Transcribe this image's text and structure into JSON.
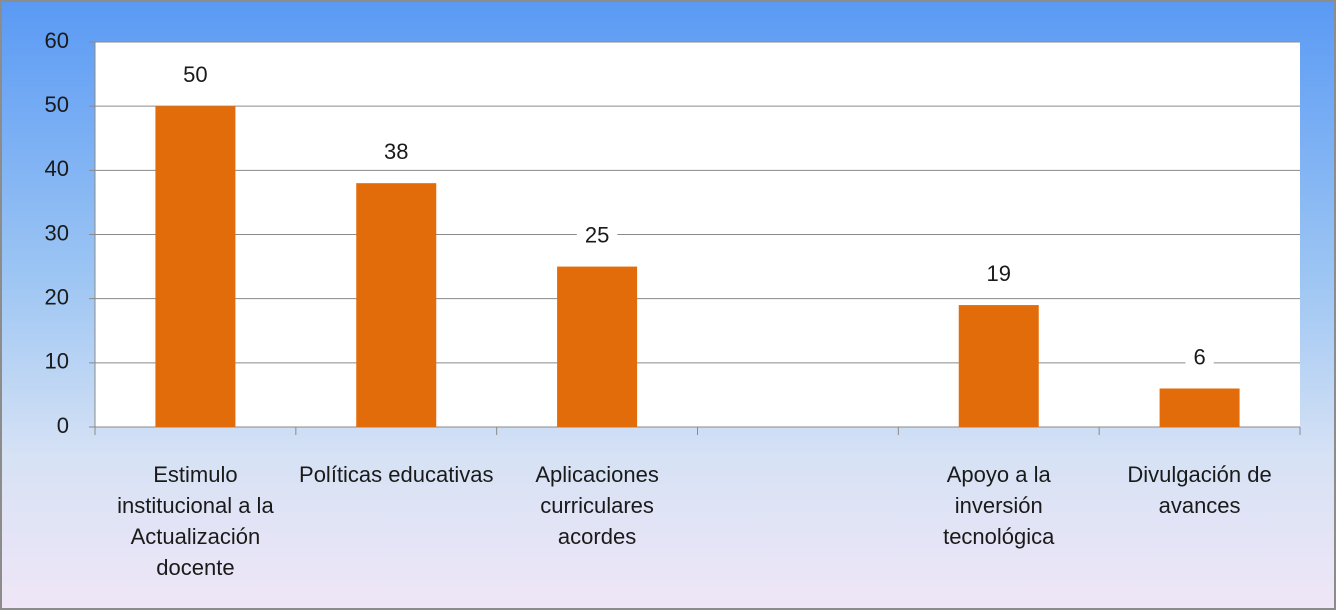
{
  "chart_data": {
    "type": "bar",
    "categories": [
      "Estimulo institucional a la Actualización docente",
      "Políticas educativas",
      "Aplicaciones curriculares acordes",
      null,
      "Apoyo a la inversión tecnológica",
      "Divulgación de avances"
    ],
    "values": [
      50,
      38,
      25,
      null,
      19,
      6
    ],
    "color": "#e36c0a",
    "ylim": [
      0,
      60
    ],
    "yticks": [
      0,
      10,
      20,
      30,
      40,
      50,
      60
    ],
    "grid": true
  }
}
